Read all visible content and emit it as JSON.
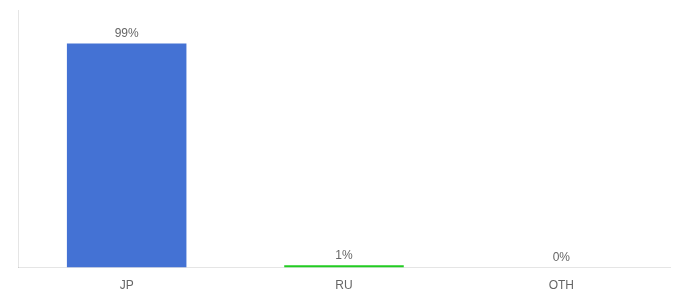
{
  "chart_data": {
    "type": "bar",
    "categories": [
      "JP",
      "RU",
      "OTH"
    ],
    "values": [
      99,
      1,
      0
    ],
    "value_labels": [
      "99%",
      "1%",
      "0%"
    ],
    "colors": [
      "#4472d4",
      "#22cc22",
      "#4472d4"
    ],
    "ylim": [
      0,
      113.85
    ],
    "grid": false,
    "data_labels": true,
    "tick_labels": "x"
  }
}
